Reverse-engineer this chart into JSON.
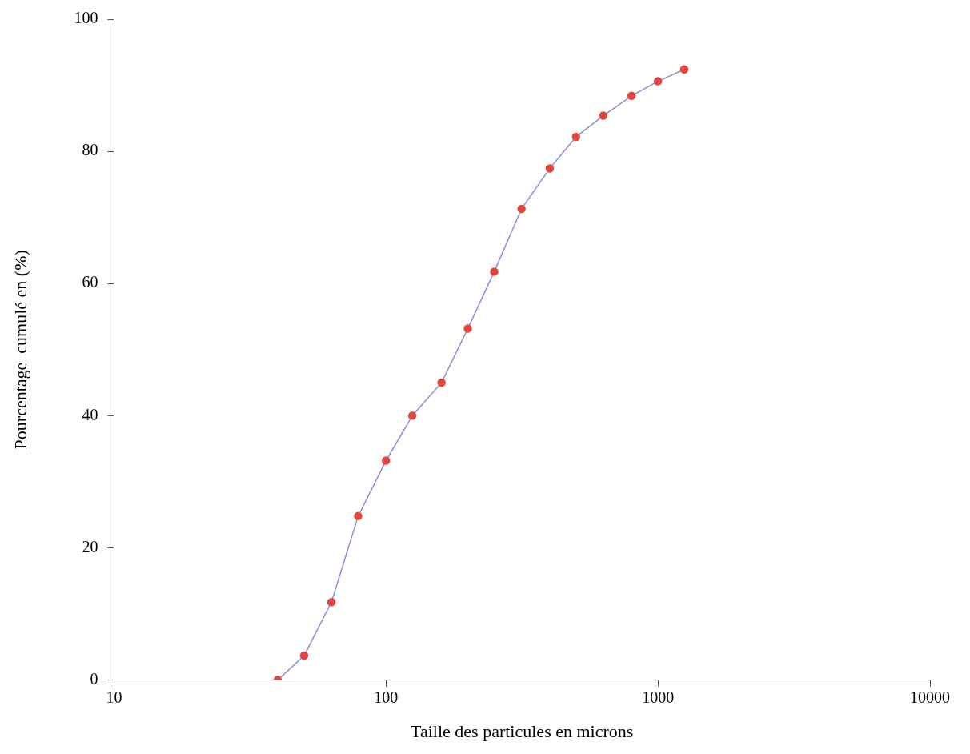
{
  "chart_data": {
    "type": "line",
    "xlabel": "Taille des particules en microns",
    "ylabel": "Pourcentage  cumulé en (%)",
    "log": "x",
    "xlim": [
      10,
      10000
    ],
    "xticks": [
      10,
      100,
      1000,
      10000
    ],
    "ylim": [
      0,
      100
    ],
    "yticks": [
      0,
      20,
      40,
      60,
      80,
      100
    ],
    "grid": false,
    "legend": false,
    "marker": "circle",
    "line_style": "solid",
    "series": [
      {
        "color": "#8a8ee0",
        "x": [
          40,
          50,
          63,
          79,
          100,
          125,
          160,
          200,
          250,
          315,
          400,
          500,
          630,
          800,
          1000,
          1250
        ],
        "values": [
          0,
          3.7,
          11.8,
          24.8,
          33.2,
          40,
          45,
          53.2,
          61.8,
          71.3,
          77.4,
          82.2,
          85.4,
          88.4,
          90.6,
          92.4
        ]
      }
    ]
  }
}
